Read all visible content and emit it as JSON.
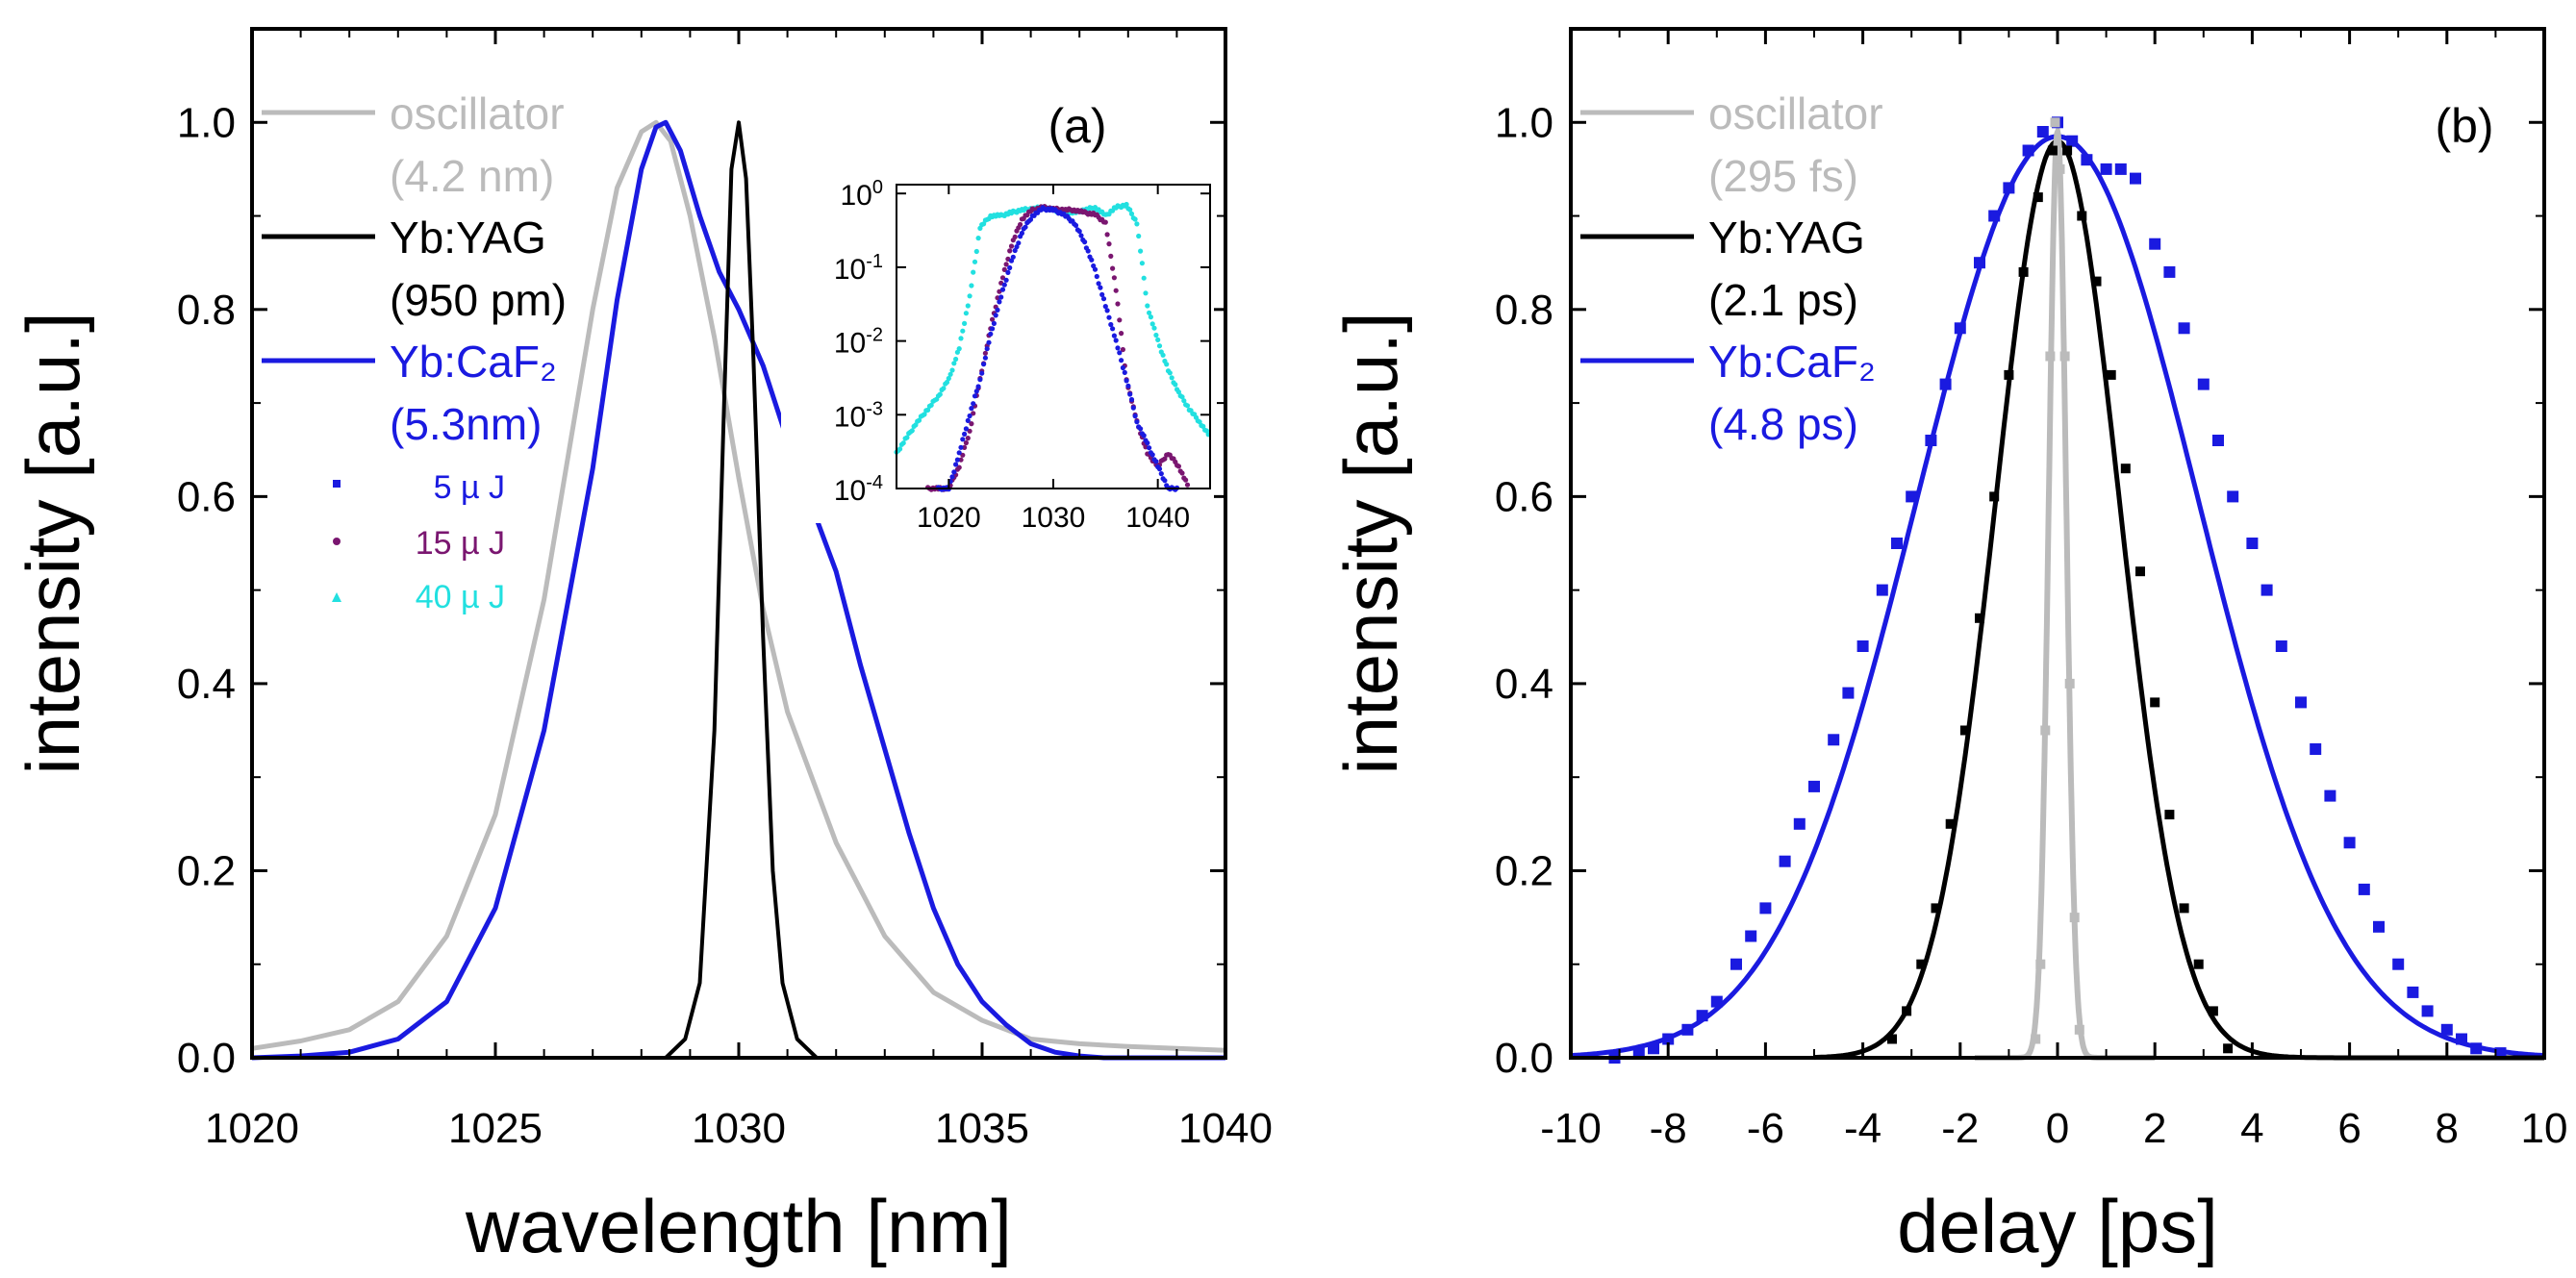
{
  "colors": {
    "oscillator": "#bbbbbb",
    "yag": "#000000",
    "caf2": "#1a1ae0",
    "e5": "#1a1ae0",
    "e15": "#7a1670",
    "e40": "#22e0e0"
  },
  "chart_data": [
    {
      "id": "a",
      "type": "line",
      "panel_label": "(a)",
      "xlabel": "wavelength [nm]",
      "ylabel": "intensity [a.u.]",
      "xlim": [
        1020,
        1040
      ],
      "ylim": [
        0,
        1.1
      ],
      "xticks": [
        1020,
        1025,
        1030,
        1035,
        1040
      ],
      "xtick_labels": [
        "1020",
        "1025",
        "1030",
        "1035",
        "1040"
      ],
      "yticks": [
        0,
        0.2,
        0.4,
        0.6,
        0.8,
        1.0
      ],
      "ytick_labels": [
        "0.0",
        "0.2",
        "0.4",
        "0.6",
        "0.8",
        "1.0"
      ],
      "legend": [
        {
          "label": "oscillator",
          "sub": "(4.2 nm)",
          "series": "oscillator"
        },
        {
          "label": "Yb:YAG",
          "sub": "(950 pm)",
          "series": "yag"
        },
        {
          "label": "Yb:CaF₂",
          "sub": "(5.3nm)",
          "series": "caf2"
        }
      ],
      "energy_legend": [
        {
          "label": "5 µ J",
          "series": "e5"
        },
        {
          "label": "15 µ J",
          "series": "e15"
        },
        {
          "label": "40 µ J",
          "series": "e40"
        }
      ],
      "series": [
        {
          "name": "oscillator",
          "x": [
            1020,
            1021,
            1022,
            1023,
            1024,
            1025,
            1026,
            1027,
            1027.5,
            1028,
            1028.3,
            1028.6,
            1029,
            1029.5,
            1030,
            1030.5,
            1031,
            1032,
            1033,
            1034,
            1035,
            1036,
            1037,
            1038,
            1039,
            1040
          ],
          "y": [
            0.01,
            0.018,
            0.03,
            0.06,
            0.13,
            0.26,
            0.49,
            0.8,
            0.93,
            0.99,
            1.0,
            0.98,
            0.9,
            0.77,
            0.62,
            0.48,
            0.37,
            0.23,
            0.13,
            0.07,
            0.04,
            0.02,
            0.015,
            0.012,
            0.01,
            0.008
          ]
        },
        {
          "name": "yag",
          "x": [
            1020,
            1028.5,
            1028.9,
            1029.2,
            1029.5,
            1029.7,
            1029.85,
            1030,
            1030.15,
            1030.3,
            1030.5,
            1030.7,
            1030.9,
            1031.2,
            1031.6,
            1040
          ],
          "y": [
            0,
            0,
            0.02,
            0.08,
            0.35,
            0.7,
            0.95,
            1.0,
            0.94,
            0.75,
            0.45,
            0.2,
            0.08,
            0.02,
            0,
            0
          ]
        },
        {
          "name": "caf2",
          "x": [
            1020,
            1021,
            1022,
            1023,
            1024,
            1025,
            1026,
            1027,
            1027.5,
            1028,
            1028.3,
            1028.5,
            1028.8,
            1029.2,
            1029.6,
            1030,
            1030.5,
            1031,
            1031.5,
            1032,
            1032.5,
            1033,
            1033.5,
            1034,
            1034.5,
            1035,
            1035.5,
            1036,
            1036.5,
            1037,
            1037.5,
            1038,
            1039,
            1040
          ],
          "y": [
            0,
            0.002,
            0.006,
            0.02,
            0.06,
            0.16,
            0.35,
            0.63,
            0.81,
            0.95,
            0.995,
            1.0,
            0.97,
            0.9,
            0.84,
            0.8,
            0.74,
            0.66,
            0.59,
            0.52,
            0.42,
            0.33,
            0.24,
            0.16,
            0.1,
            0.06,
            0.035,
            0.015,
            0.006,
            0.002,
            0.0,
            0,
            0,
            0
          ]
        }
      ]
    },
    {
      "id": "a-inset",
      "type": "scatter",
      "yscale": "log",
      "xlim": [
        1015,
        1045
      ],
      "ylim": [
        0.0001,
        1.0
      ],
      "xticks": [
        1020,
        1030,
        1040
      ],
      "xtick_labels": [
        "1020",
        "1030",
        "1040"
      ],
      "yticks": [
        1,
        0.1,
        0.01,
        0.001,
        0.0001
      ],
      "ytick_labels": [
        {
          "base": "10",
          "exp": "0"
        },
        {
          "base": "10",
          "exp": "-1"
        },
        {
          "base": "10",
          "exp": "-2"
        },
        {
          "base": "10",
          "exp": "-3"
        },
        {
          "base": "10",
          "exp": "-4"
        }
      ],
      "series": [
        {
          "name": "e40",
          "x": [
            1015,
            1016,
            1017,
            1018,
            1019,
            1020,
            1021,
            1022,
            1023,
            1024,
            1025,
            1026,
            1027,
            1028,
            1029,
            1030,
            1031,
            1032,
            1033,
            1034,
            1035,
            1036,
            1037,
            1038,
            1039,
            1040,
            1041,
            1042,
            1043,
            1044,
            1045
          ],
          "y": [
            0.0003,
            0.0005,
            0.0008,
            0.0012,
            0.0018,
            0.003,
            0.008,
            0.04,
            0.35,
            0.5,
            0.5,
            0.55,
            0.6,
            0.62,
            0.65,
            0.6,
            0.55,
            0.55,
            0.6,
            0.65,
            0.5,
            0.65,
            0.7,
            0.4,
            0.03,
            0.01,
            0.004,
            0.002,
            0.0012,
            0.0008,
            0.0005
          ]
        },
        {
          "name": "e15",
          "x": [
            1018,
            1019,
            1020,
            1021,
            1022,
            1023,
            1024,
            1025,
            1026,
            1027,
            1028,
            1029,
            1030,
            1031,
            1032,
            1033,
            1034,
            1035,
            1036,
            1037,
            1038,
            1039,
            1040,
            1041,
            1042,
            1043
          ],
          "y": [
            0.0001,
            0.0001,
            0.0001,
            0.0002,
            0.0006,
            0.003,
            0.015,
            0.06,
            0.2,
            0.45,
            0.6,
            0.65,
            0.62,
            0.6,
            0.6,
            0.55,
            0.52,
            0.4,
            0.05,
            0.003,
            0.0008,
            0.0003,
            0.0002,
            0.0003,
            0.0002,
            0.0001
          ]
        },
        {
          "name": "e5",
          "x": [
            1019,
            1020,
            1021,
            1022,
            1023,
            1024,
            1025,
            1026,
            1027,
            1028,
            1029,
            1030,
            1031,
            1032,
            1033,
            1034,
            1035,
            1036,
            1037,
            1038,
            1039,
            1040,
            1041,
            1042
          ],
          "y": [
            0.0001,
            0.0001,
            0.0003,
            0.001,
            0.003,
            0.012,
            0.04,
            0.12,
            0.3,
            0.5,
            0.62,
            0.6,
            0.52,
            0.4,
            0.22,
            0.09,
            0.03,
            0.01,
            0.003,
            0.0008,
            0.0004,
            0.0002,
            0.0001,
            0.0001
          ]
        }
      ]
    },
    {
      "id": "b",
      "type": "line",
      "panel_label": "(b)",
      "xlabel": "delay [ps]",
      "ylabel": "intensity [a.u.]",
      "xlim": [
        -10,
        10
      ],
      "ylim": [
        0,
        1.1
      ],
      "xticks": [
        -10,
        -8,
        -6,
        -4,
        -2,
        0,
        2,
        4,
        6,
        8,
        10
      ],
      "xtick_labels": [
        "-10",
        "-8",
        "-6",
        "-4",
        "-2",
        "0",
        "2",
        "4",
        "6",
        "8",
        "10"
      ],
      "yticks": [
        0,
        0.2,
        0.4,
        0.6,
        0.8,
        1.0
      ],
      "ytick_labels": [
        "0.0",
        "0.2",
        "0.4",
        "0.6",
        "0.8",
        "1.0"
      ],
      "legend": [
        {
          "label": "oscillator",
          "sub": "(295 fs)",
          "series": "oscillator"
        },
        {
          "label": "Yb:YAG",
          "sub": "(2.1 ps)",
          "series": "yag"
        },
        {
          "label": "Yb:CaF₂",
          "sub": "(4.8 ps)",
          "series": "caf2"
        }
      ],
      "fits": [
        {
          "name": "caf2",
          "amplitude": 0.985,
          "fwhm_ps": 6.8,
          "xmin": -10,
          "xmax": 10
        },
        {
          "name": "yag",
          "amplitude": 0.98,
          "fwhm_ps": 3.0,
          "xmin": -5,
          "xmax": 10
        },
        {
          "name": "oscillator",
          "amplitude": 0.99,
          "fwhm_ps": 0.42,
          "xmin": -1.7,
          "xmax": 2
        }
      ],
      "points": [
        {
          "name": "caf2",
          "x": [
            -9.1,
            -8.6,
            -8.3,
            -8.0,
            -7.6,
            -7.3,
            -7.0,
            -6.6,
            -6.3,
            -6.0,
            -5.6,
            -5.3,
            -5.0,
            -4.6,
            -4.3,
            -4.0,
            -3.6,
            -3.3,
            -3.0,
            -2.6,
            -2.3,
            -2.0,
            -1.6,
            -1.3,
            -1.0,
            -0.6,
            -0.3,
            0.0,
            0.3,
            0.6,
            1.0,
            1.3,
            1.6,
            2.0,
            2.3,
            2.6,
            3.0,
            3.3,
            3.6,
            4.0,
            4.3,
            4.6,
            5.0,
            5.3,
            5.6,
            6.0,
            6.3,
            6.6,
            7.0,
            7.3,
            7.6,
            8.0,
            8.3,
            8.6,
            9.1
          ],
          "y": [
            0.0,
            0.005,
            0.01,
            0.02,
            0.03,
            0.045,
            0.06,
            0.1,
            0.13,
            0.16,
            0.21,
            0.25,
            0.29,
            0.34,
            0.39,
            0.44,
            0.5,
            0.55,
            0.6,
            0.66,
            0.72,
            0.78,
            0.85,
            0.9,
            0.93,
            0.97,
            0.99,
            1.0,
            0.98,
            0.96,
            0.95,
            0.95,
            0.94,
            0.87,
            0.84,
            0.78,
            0.72,
            0.66,
            0.6,
            0.55,
            0.5,
            0.44,
            0.38,
            0.33,
            0.28,
            0.23,
            0.18,
            0.14,
            0.1,
            0.07,
            0.05,
            0.03,
            0.02,
            0.01,
            0.005
          ]
        },
        {
          "name": "yag",
          "x": [
            -3.4,
            -3.1,
            -2.8,
            -2.5,
            -2.2,
            -1.9,
            -1.6,
            -1.3,
            -1.0,
            -0.7,
            -0.4,
            -0.1,
            0.2,
            0.5,
            0.8,
            1.1,
            1.4,
            1.7,
            2.0,
            2.3,
            2.6,
            2.9,
            3.2,
            3.5
          ],
          "y": [
            0.02,
            0.05,
            0.1,
            0.16,
            0.25,
            0.35,
            0.47,
            0.6,
            0.73,
            0.84,
            0.92,
            0.97,
            0.97,
            0.9,
            0.83,
            0.73,
            0.63,
            0.52,
            0.38,
            0.26,
            0.16,
            0.1,
            0.05,
            0.01
          ]
        },
        {
          "name": "oscillator",
          "x": [
            -0.45,
            -0.35,
            -0.25,
            -0.15,
            -0.05,
            0.05,
            0.15,
            0.25,
            0.35,
            0.45
          ],
          "y": [
            0.02,
            0.1,
            0.35,
            0.75,
            1.0,
            0.95,
            0.75,
            0.4,
            0.15,
            0.03
          ]
        }
      ]
    }
  ]
}
